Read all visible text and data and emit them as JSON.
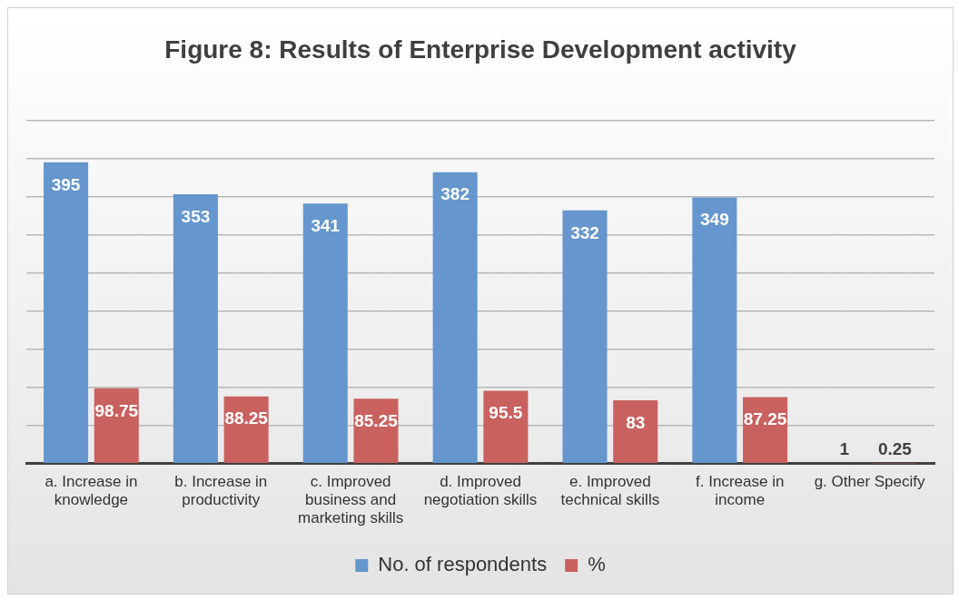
{
  "chart_data": {
    "type": "bar",
    "title": "Figure 8: Results of Enterprise Development activity",
    "categories": [
      "a.      Increase in knowledge",
      "b.      Increase in productivity",
      "c.      Improved business and marketing skills",
      "d.      Improved negotiation skills",
      "e.      Improved technical skills",
      "f.      Increase in income",
      "g.      Other Specify"
    ],
    "series": [
      {
        "name": "No. of respondents",
        "color": "#6596cd",
        "values": [
          395,
          353,
          341,
          382,
          332,
          349,
          1
        ]
      },
      {
        "name": "%",
        "color": "#c9615f",
        "values": [
          98.75,
          88.25,
          85.25,
          95.5,
          83,
          87.25,
          0.25
        ]
      }
    ],
    "ylim": [
      0,
      450
    ],
    "yticks": [
      {
        "value": 0,
        "label": null
      },
      {
        "value": 50,
        "label": null
      },
      {
        "value": 100,
        "label": null
      },
      {
        "value": 150,
        "label": null
      },
      {
        "value": 200,
        "label": null
      },
      {
        "value": 250,
        "label": null
      },
      {
        "value": 300,
        "label": null
      },
      {
        "value": 350,
        "label": null
      },
      {
        "value": 400,
        "label": null
      },
      {
        "value": 450,
        "label": null
      }
    ],
    "tick_labels": "x",
    "grid": "y",
    "legend": "bottom",
    "data_labels": true
  }
}
